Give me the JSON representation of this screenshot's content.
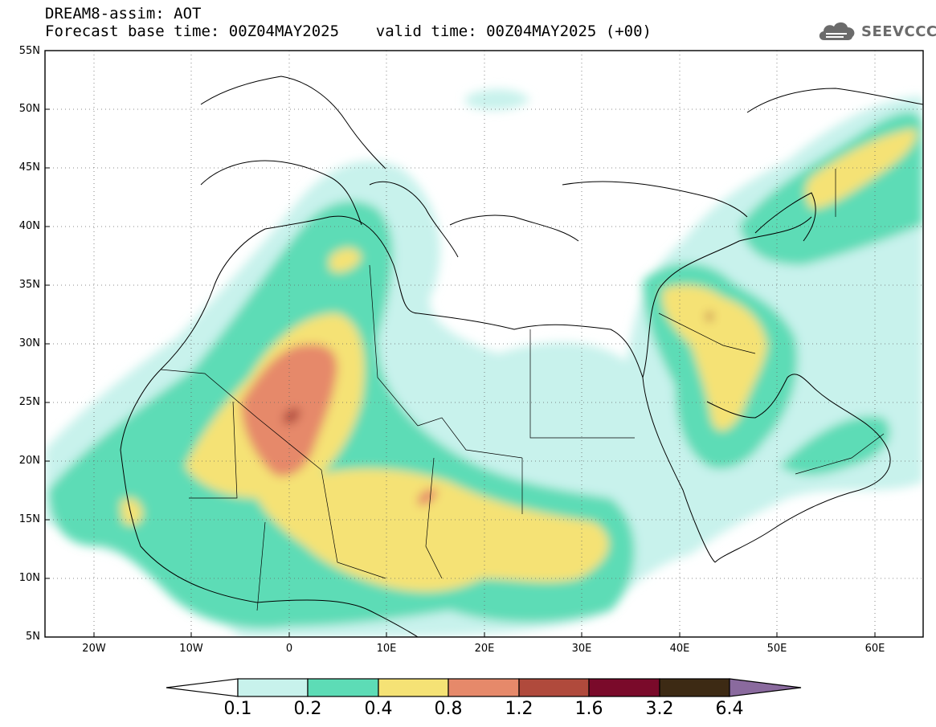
{
  "title": {
    "line1": "DREAM8-assim: AOT",
    "line2": "Forecast base time: 00Z04MAY2025    valid time: 00Z04MAY2025 (+00)"
  },
  "logo": {
    "text": "SEEVCCC",
    "icon": "cloud-icon",
    "color": "#6b6b6b"
  },
  "map": {
    "lat_labels": [
      "55N",
      "50N",
      "45N",
      "40N",
      "35N",
      "30N",
      "25N",
      "20N",
      "15N",
      "10N",
      "5N"
    ],
    "lon_labels": [
      "20W",
      "10W",
      "0",
      "10E",
      "20E",
      "30E",
      "40E",
      "50E",
      "60E"
    ],
    "extent": {
      "lon": [
        -25,
        65
      ],
      "lat": [
        5,
        55
      ]
    }
  },
  "colorbar": {
    "labels": [
      "0.1",
      "0.2",
      "0.4",
      "0.8",
      "1.2",
      "1.6",
      "3.2",
      "6.4"
    ],
    "colors": [
      "#ffffff",
      "#c8f2ec",
      "#5ddcb6",
      "#f5e275",
      "#e6896a",
      "#b04a3c",
      "#7a0a2a",
      "#3d2a14",
      "#8a6a9e"
    ]
  }
}
